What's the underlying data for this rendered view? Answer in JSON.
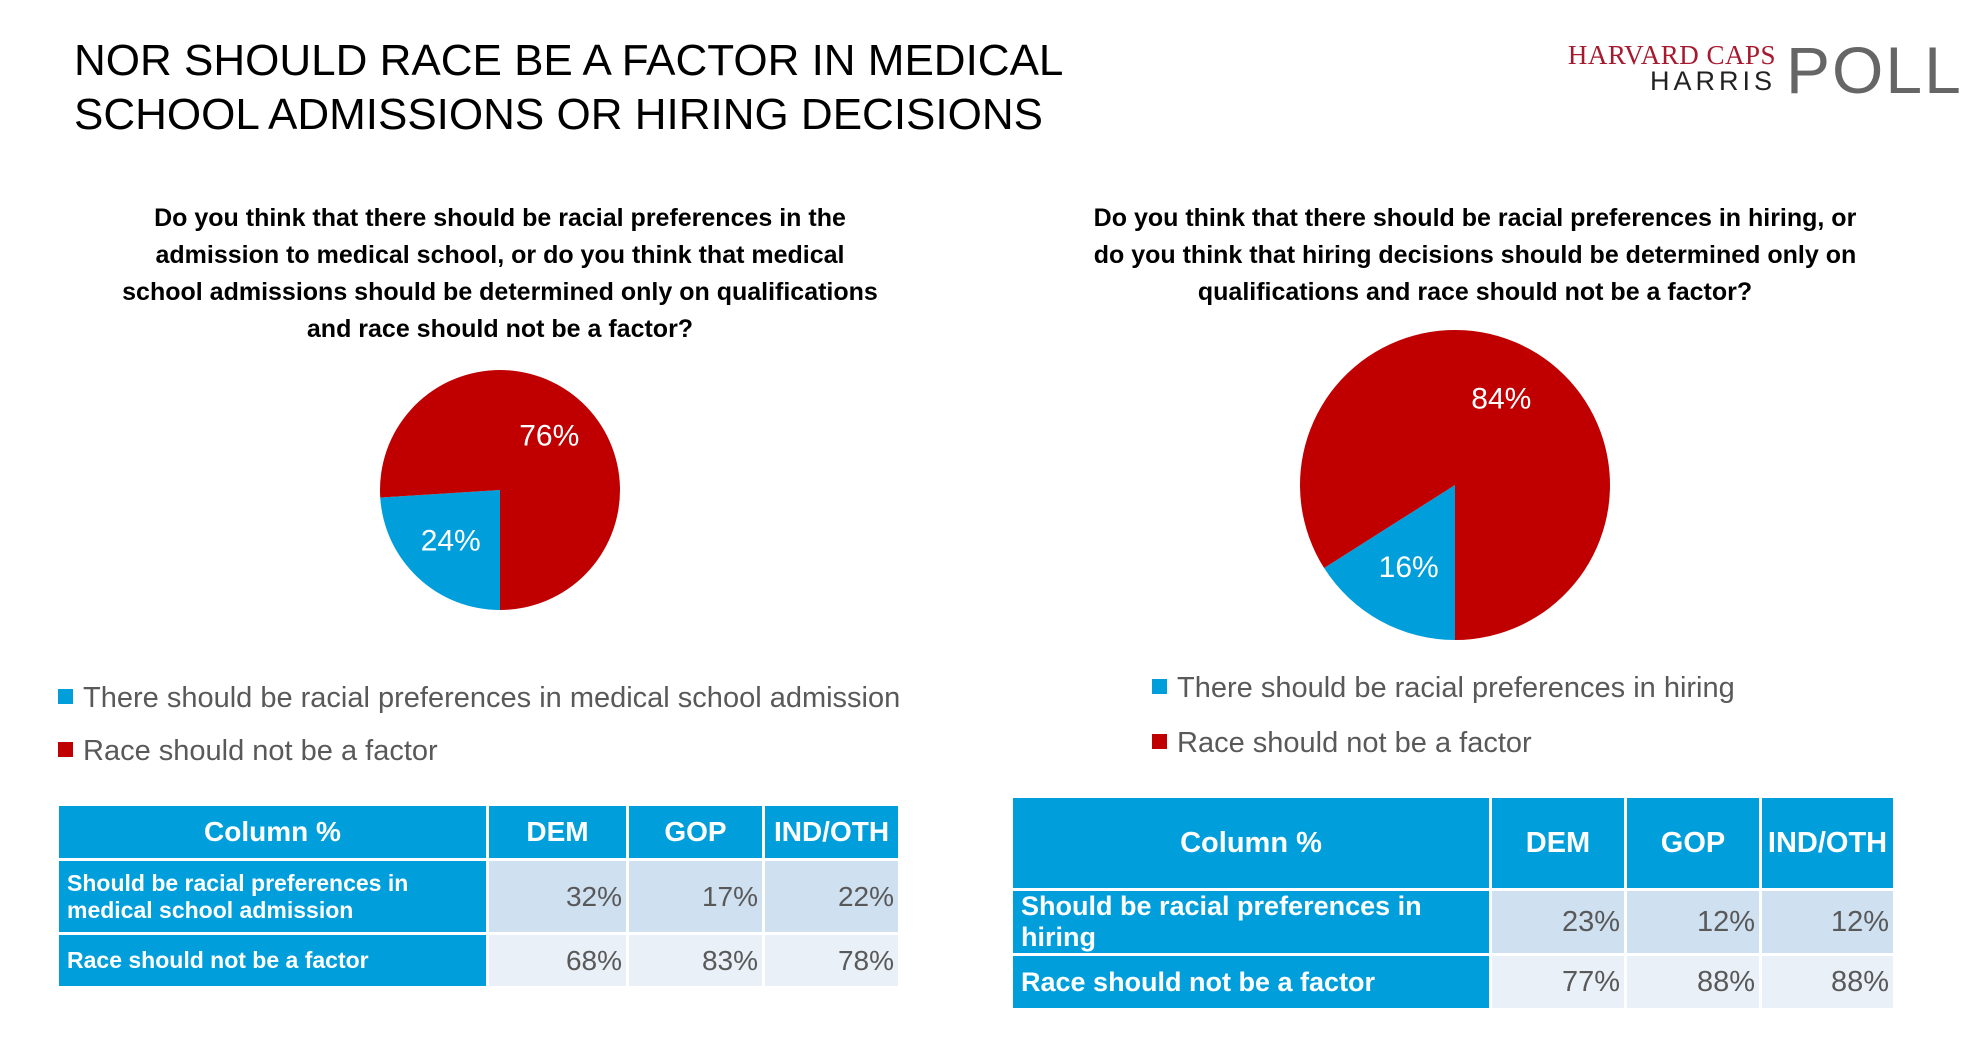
{
  "slide": {
    "title": "NOR SHOULD RACE BE A FACTOR IN MEDICAL SCHOOL ADMISSIONS OR HIRING DECISIONS",
    "logo": {
      "line1": "HARVARD CAPS",
      "line2": "HARRIS",
      "line3": "POLL"
    }
  },
  "colors": {
    "blue": "#009fdb",
    "red": "#c00000",
    "table_header": "#009fdb",
    "row_light": "#cfe0f1",
    "row_lighter": "#e9f0f8"
  },
  "chart_data": [
    {
      "type": "pie",
      "title": "Do you think that there should be racial preferences in the admission to medical school, or do you think that medical school admissions should be determined only on qualifications and race should not be a factor?",
      "slices": [
        {
          "label": "There should be racial preferences in medical school admission",
          "value": 24,
          "display": "24%",
          "color": "#009fdb"
        },
        {
          "label": "Race should not be a factor",
          "value": 76,
          "display": "76%",
          "color": "#c00000"
        }
      ],
      "legend_position": "bottom"
    },
    {
      "type": "pie",
      "title": "Do you think that there should be racial preferences in hiring, or do you think that hiring decisions should be determined only on qualifications and race should not be a factor?",
      "slices": [
        {
          "label": "There should be racial preferences in hiring",
          "value": 16,
          "display": "16%",
          "color": "#009fdb"
        },
        {
          "label": "Race should not be a factor",
          "value": 84,
          "display": "84%",
          "color": "#c00000"
        }
      ],
      "legend_position": "bottom"
    },
    {
      "type": "table",
      "columns": [
        "Column %",
        "DEM",
        "GOP",
        "IND/OTH"
      ],
      "rows": [
        {
          "label": "Should be racial preferences in medical school admission",
          "values": [
            "32%",
            "17%",
            "22%"
          ]
        },
        {
          "label": "Race should not be a factor",
          "values": [
            "68%",
            "83%",
            "78%"
          ]
        }
      ]
    },
    {
      "type": "table",
      "columns": [
        "Column %",
        "DEM",
        "GOP",
        "IND/OTH"
      ],
      "rows": [
        {
          "label": "Should be racial preferences in hiring",
          "values": [
            "23%",
            "12%",
            "12%"
          ]
        },
        {
          "label": "Race should not be a factor",
          "values": [
            "77%",
            "88%",
            "88%"
          ]
        }
      ]
    }
  ]
}
